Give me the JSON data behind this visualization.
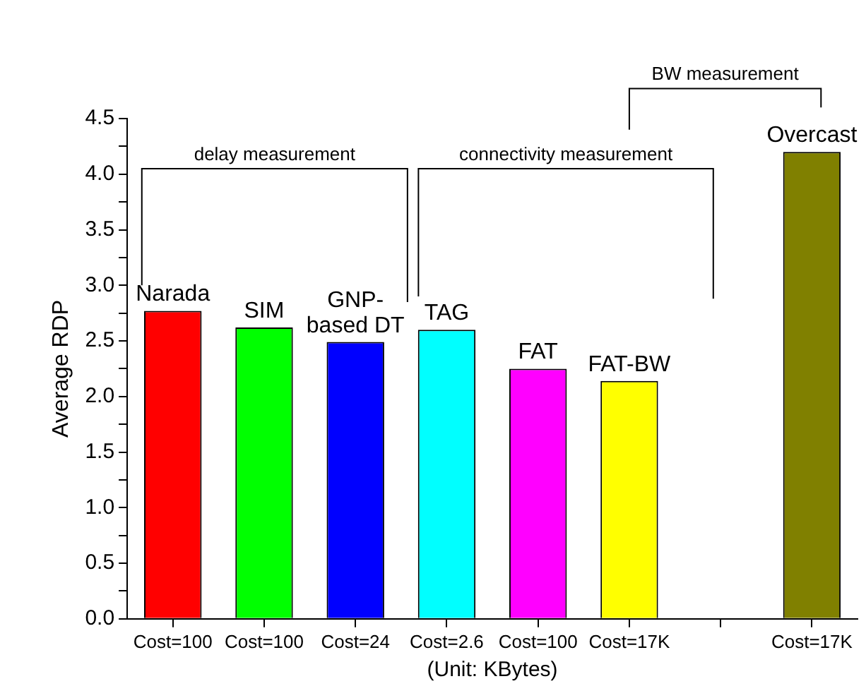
{
  "chart_data": {
    "type": "bar",
    "ylabel": "Average RDP",
    "xlabel": "(Unit: KBytes)",
    "categories": [
      "Cost=100",
      "Cost=100",
      "Cost=24",
      "Cost=2.6",
      "Cost=100",
      "Cost=17K",
      null,
      "Cost=17K"
    ],
    "series": [
      {
        "name": "Narada",
        "color": "#ff0000",
        "values": [
          2.77,
          null,
          null,
          null,
          null,
          null,
          null,
          null
        ]
      },
      {
        "name": "SIM",
        "color": "#00ff00",
        "values": [
          null,
          2.62,
          null,
          null,
          null,
          null,
          null,
          null
        ]
      },
      {
        "name": "GNP-based DT",
        "color": "#0000ff",
        "values": [
          null,
          null,
          2.49,
          null,
          null,
          null,
          null,
          null
        ]
      },
      {
        "name": "TAG",
        "color": "#00ffff",
        "values": [
          null,
          null,
          null,
          2.6,
          null,
          null,
          null,
          null
        ]
      },
      {
        "name": "FAT",
        "color": "#ff00ff",
        "values": [
          null,
          null,
          null,
          null,
          2.25,
          null,
          null,
          null
        ]
      },
      {
        "name": "FAT-BW",
        "color": "#ffff00",
        "values": [
          null,
          null,
          null,
          null,
          null,
          2.14,
          null,
          null
        ]
      },
      {
        "name": "Overcast",
        "color": "#808000",
        "values": [
          null,
          null,
          null,
          null,
          null,
          null,
          null,
          4.2
        ]
      }
    ],
    "ylim": [
      0,
      4.5
    ],
    "yticks": [
      {
        "value": 0,
        "label": "0.0"
      },
      {
        "value": 0.25,
        "label": null
      },
      0.5,
      {
        "value": 0.75,
        "label": null
      },
      {
        "value": 1,
        "label": "1.0"
      },
      {
        "value": 1.25,
        "label": null
      },
      1.5,
      {
        "value": 1.75,
        "label": null
      },
      {
        "value": 2,
        "label": "2.0"
      },
      {
        "value": 2.25,
        "label": null
      },
      2.5,
      {
        "value": 2.75,
        "label": null
      },
      {
        "value": 3,
        "label": "3.0"
      },
      {
        "value": 3.25,
        "label": null
      },
      3.5,
      {
        "value": 3.75,
        "label": null
      },
      {
        "value": 4,
        "label": "4.0"
      },
      {
        "value": 4.25,
        "label": null
      },
      4.5
    ],
    "annotations": [
      "delay measurement",
      "connectivity measurement",
      "BW measurement"
    ],
    "grid": false,
    "legend": false
  }
}
